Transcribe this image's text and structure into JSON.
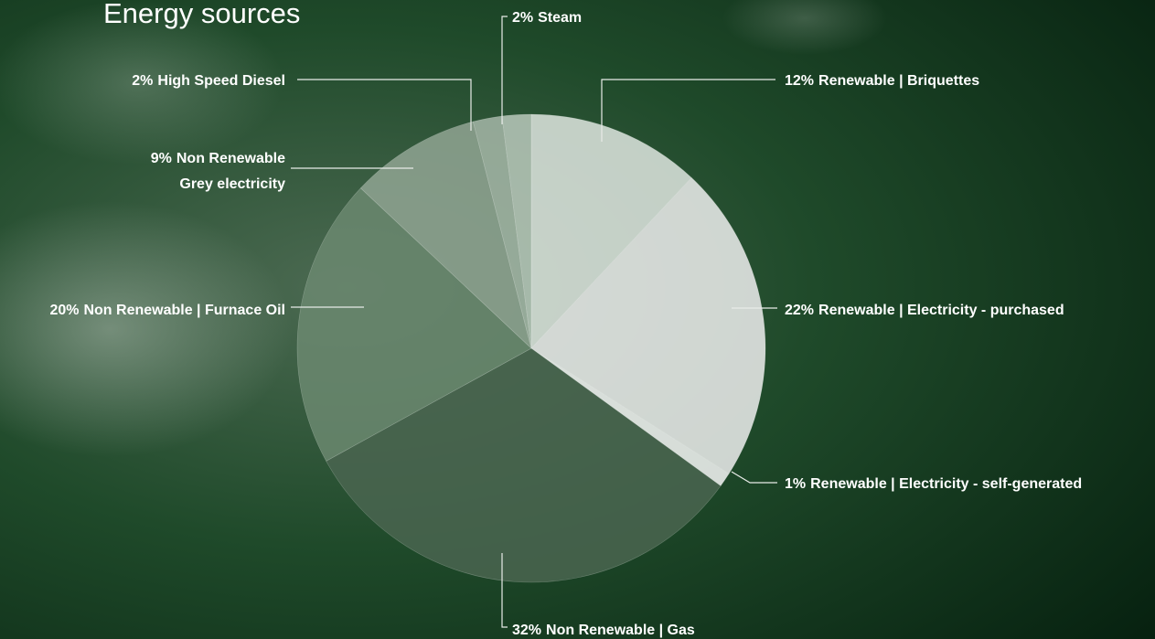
{
  "chart_data": {
    "type": "pie",
    "title": "Energy sources",
    "categories": [
      "Renewable | Briquettes",
      "Renewable | Electricity - purchased",
      "Renewable | Electricity - self-generated",
      "Non Renewable | Gas",
      "Non Renewable | Furnace Oil",
      [
        "Non Renewable",
        "Grey electricity"
      ],
      "High Speed Diesel",
      "Steam"
    ],
    "values": [
      12,
      22,
      1,
      32,
      20,
      9,
      2,
      2
    ],
    "value_labels": [
      "12%",
      "22%",
      "1%",
      "32%",
      "20%",
      "9%",
      "2%",
      "2%"
    ],
    "colors": [
      "#dfe6e0",
      "#efefef",
      "#f7f7f7",
      "#4a6550",
      "#6b8870",
      "#91a593",
      "#a6b7a8",
      "#bac9bc"
    ]
  }
}
